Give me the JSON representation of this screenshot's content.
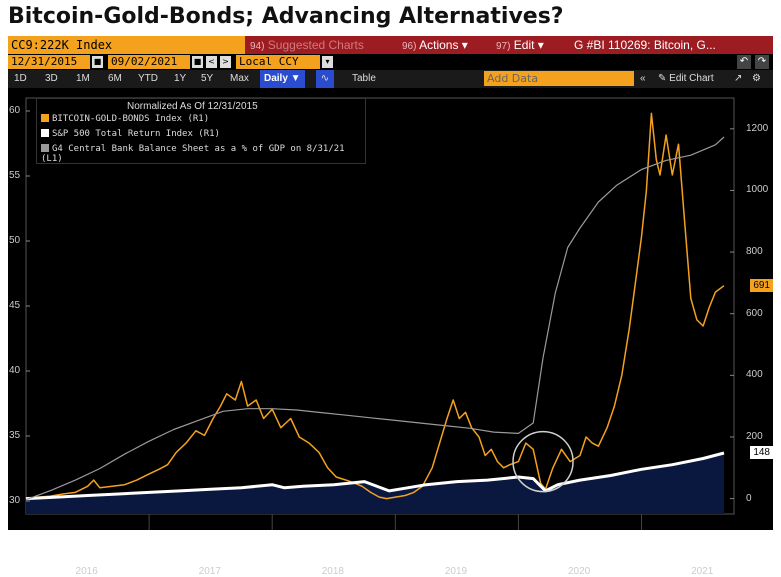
{
  "headline": "Bitcoin-Gold-Bonds; Advancing Alternatives?",
  "toolbar": {
    "ticker": "CC9:222K Index",
    "f1_num": "94)",
    "f1_label": "Suggested Charts",
    "f2_num": "96)",
    "f2_label": "Actions ▾",
    "f3_num": "97)",
    "f3_label": "Edit ▾",
    "f4_label": "G #BI 110269: Bitcoin, G..."
  },
  "range": {
    "start": "12/31/2015",
    "end": "09/02/2021",
    "currency": "Local CCY"
  },
  "tabs": [
    "1D",
    "3D",
    "1M",
    "6M",
    "YTD",
    "1Y",
    "5Y",
    "Max"
  ],
  "daily_label": "Daily ▼",
  "table_label": "Table",
  "add_data_placeholder": "Add Data",
  "edit_chart_label": "Edit Chart",
  "chart_data": {
    "type": "line",
    "title": "Normalized As Of 12/31/2015",
    "legend": [
      {
        "name": "BITCOIN-GOLD-BONDS Index (R1)",
        "color": "#f4a11e"
      },
      {
        "name": "S&P 500 Total Return Index (R1)",
        "color": "#ffffff"
      },
      {
        "name": "G4 Central Bank Balance Sheet as a % of GDP on 8/31/21 (L1)",
        "color": "#9a9a9a"
      }
    ],
    "left_axis": {
      "range": [
        29,
        61
      ],
      "ticks": [
        30,
        35,
        40,
        45,
        50,
        55,
        60
      ]
    },
    "right_axis": {
      "range": [
        -50,
        1300
      ],
      "ticks": [
        0,
        200,
        400,
        600,
        800,
        1000,
        1200
      ]
    },
    "x_labels": [
      "2016",
      "2017",
      "2018",
      "2019",
      "2020",
      "2021"
    ],
    "x_range": [
      2016.0,
      2021.67
    ],
    "end_labels": {
      "bitcoin": "691",
      "sp500": "148"
    },
    "series": [
      {
        "name": "BITCOIN-GOLD-BONDS",
        "axis": "right",
        "color": "#f4a11e",
        "points": [
          [
            2016.0,
            0
          ],
          [
            2016.1,
            5
          ],
          [
            2016.2,
            8
          ],
          [
            2016.3,
            15
          ],
          [
            2016.4,
            20
          ],
          [
            2016.5,
            40
          ],
          [
            2016.55,
            60
          ],
          [
            2016.6,
            35
          ],
          [
            2016.7,
            40
          ],
          [
            2016.8,
            45
          ],
          [
            2016.9,
            60
          ],
          [
            2017.0,
            80
          ],
          [
            2017.08,
            95
          ],
          [
            2017.15,
            110
          ],
          [
            2017.22,
            150
          ],
          [
            2017.3,
            180
          ],
          [
            2017.38,
            220
          ],
          [
            2017.45,
            205
          ],
          [
            2017.52,
            260
          ],
          [
            2017.58,
            300
          ],
          [
            2017.63,
            340
          ],
          [
            2017.7,
            320
          ],
          [
            2017.75,
            380
          ],
          [
            2017.8,
            300
          ],
          [
            2017.87,
            320
          ],
          [
            2017.93,
            260
          ],
          [
            2018.0,
            290
          ],
          [
            2018.07,
            230
          ],
          [
            2018.15,
            260
          ],
          [
            2018.22,
            200
          ],
          [
            2018.3,
            180
          ],
          [
            2018.38,
            150
          ],
          [
            2018.45,
            100
          ],
          [
            2018.52,
            70
          ],
          [
            2018.6,
            60
          ],
          [
            2018.67,
            50
          ],
          [
            2018.73,
            40
          ],
          [
            2018.8,
            20
          ],
          [
            2018.87,
            5
          ],
          [
            2018.93,
            0
          ],
          [
            2019.0,
            5
          ],
          [
            2019.08,
            10
          ],
          [
            2019.15,
            20
          ],
          [
            2019.22,
            40
          ],
          [
            2019.3,
            100
          ],
          [
            2019.36,
            180
          ],
          [
            2019.42,
            260
          ],
          [
            2019.47,
            320
          ],
          [
            2019.52,
            260
          ],
          [
            2019.57,
            280
          ],
          [
            2019.62,
            230
          ],
          [
            2019.68,
            200
          ],
          [
            2019.73,
            140
          ],
          [
            2019.78,
            160
          ],
          [
            2019.83,
            120
          ],
          [
            2019.88,
            100
          ],
          [
            2019.93,
            110
          ],
          [
            2020.0,
            120
          ],
          [
            2020.06,
            180
          ],
          [
            2020.12,
            160
          ],
          [
            2020.18,
            50
          ],
          [
            2020.22,
            30
          ],
          [
            2020.28,
            100
          ],
          [
            2020.35,
            160
          ],
          [
            2020.42,
            120
          ],
          [
            2020.5,
            140
          ],
          [
            2020.55,
            200
          ],
          [
            2020.6,
            180
          ],
          [
            2020.65,
            170
          ],
          [
            2020.72,
            230
          ],
          [
            2020.78,
            300
          ],
          [
            2020.84,
            400
          ],
          [
            2020.9,
            550
          ],
          [
            2020.95,
            700
          ],
          [
            2021.0,
            850
          ],
          [
            2021.04,
            1000
          ],
          [
            2021.08,
            1250
          ],
          [
            2021.12,
            1100
          ],
          [
            2021.15,
            1050
          ],
          [
            2021.2,
            1180
          ],
          [
            2021.25,
            1050
          ],
          [
            2021.3,
            1150
          ],
          [
            2021.35,
            900
          ],
          [
            2021.4,
            650
          ],
          [
            2021.45,
            580
          ],
          [
            2021.5,
            560
          ],
          [
            2021.55,
            620
          ],
          [
            2021.6,
            670
          ],
          [
            2021.67,
            691
          ]
        ]
      },
      {
        "name": "S&P 500 Total Return",
        "axis": "right",
        "color": "#ffffff",
        "points": [
          [
            2016.0,
            0
          ],
          [
            2016.25,
            5
          ],
          [
            2016.5,
            10
          ],
          [
            2016.75,
            15
          ],
          [
            2017.0,
            20
          ],
          [
            2017.25,
            25
          ],
          [
            2017.5,
            30
          ],
          [
            2017.75,
            35
          ],
          [
            2018.0,
            45
          ],
          [
            2018.1,
            35
          ],
          [
            2018.25,
            40
          ],
          [
            2018.5,
            45
          ],
          [
            2018.75,
            55
          ],
          [
            2018.95,
            25
          ],
          [
            2019.1,
            35
          ],
          [
            2019.25,
            45
          ],
          [
            2019.5,
            55
          ],
          [
            2019.75,
            60
          ],
          [
            2020.0,
            70
          ],
          [
            2020.12,
            65
          ],
          [
            2020.22,
            25
          ],
          [
            2020.32,
            45
          ],
          [
            2020.5,
            60
          ],
          [
            2020.75,
            75
          ],
          [
            2021.0,
            95
          ],
          [
            2021.25,
            110
          ],
          [
            2021.5,
            130
          ],
          [
            2021.67,
            148
          ]
        ]
      },
      {
        "name": "G4 Central Bank Balance Sheet % GDP",
        "axis": "left",
        "color": "#9a9a9a",
        "points": [
          [
            2016.0,
            30.1
          ],
          [
            2016.2,
            30.8
          ],
          [
            2016.4,
            31.6
          ],
          [
            2016.6,
            32.5
          ],
          [
            2016.8,
            33.6
          ],
          [
            2017.0,
            34.6
          ],
          [
            2017.2,
            35.5
          ],
          [
            2017.4,
            36.2
          ],
          [
            2017.6,
            36.9
          ],
          [
            2017.8,
            37.1
          ],
          [
            2018.0,
            37.1
          ],
          [
            2018.2,
            37.0
          ],
          [
            2018.4,
            36.8
          ],
          [
            2018.6,
            36.6
          ],
          [
            2018.8,
            36.4
          ],
          [
            2019.0,
            36.2
          ],
          [
            2019.2,
            36.0
          ],
          [
            2019.4,
            35.8
          ],
          [
            2019.6,
            35.6
          ],
          [
            2019.8,
            35.3
          ],
          [
            2020.0,
            35.2
          ],
          [
            2020.12,
            36.0
          ],
          [
            2020.2,
            41.0
          ],
          [
            2020.3,
            46.0
          ],
          [
            2020.4,
            49.5
          ],
          [
            2020.5,
            51.0
          ],
          [
            2020.65,
            53.0
          ],
          [
            2020.8,
            54.3
          ],
          [
            2021.0,
            55.5
          ],
          [
            2021.2,
            56.2
          ],
          [
            2021.4,
            56.6
          ],
          [
            2021.6,
            57.4
          ],
          [
            2021.67,
            58.0
          ]
        ]
      }
    ]
  }
}
